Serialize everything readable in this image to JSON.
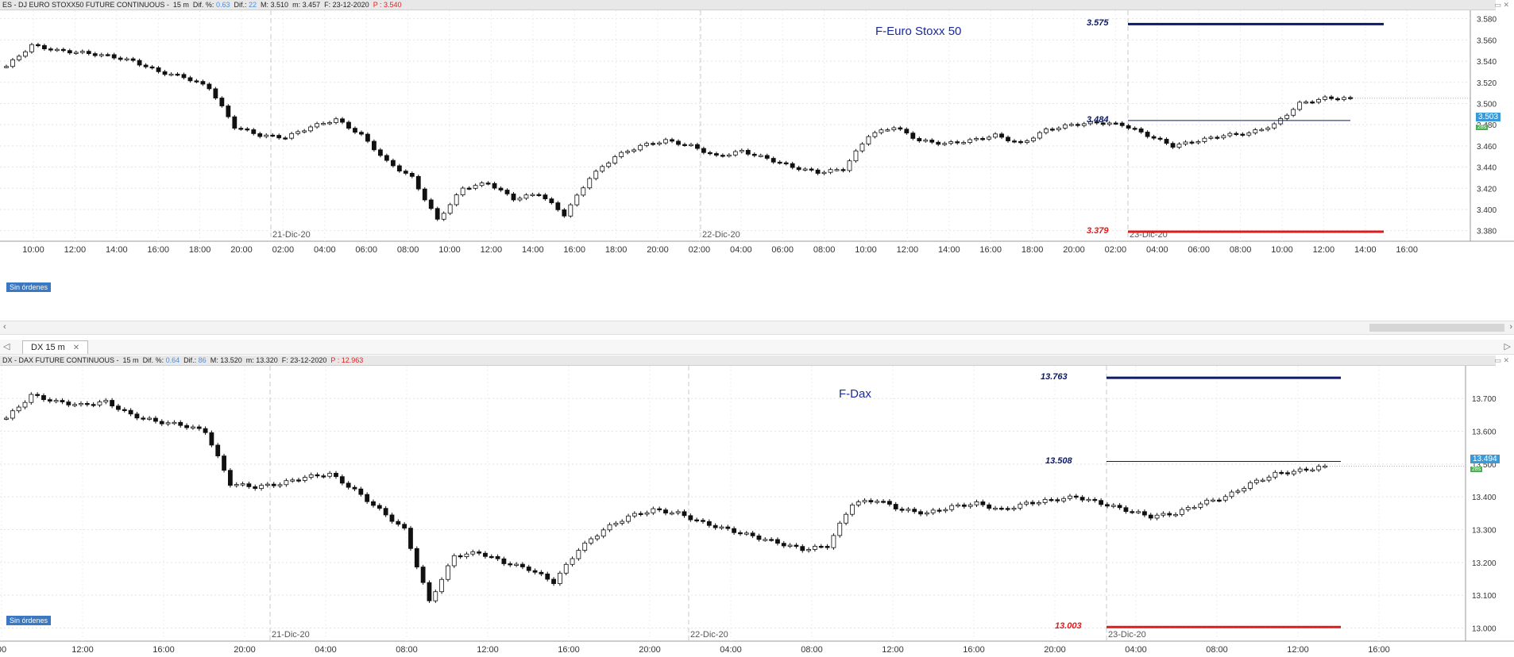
{
  "top_chart": {
    "header": {
      "symbol": "ES - DJ EURO STOXX50 FUTURE CONTINUOUS -",
      "tf": "15 m",
      "dif_pct_label": "Dif. %:",
      "dif_pct": "0.63",
      "dif_label": "Dif.:",
      "dif": "22",
      "max": "M: 3.510",
      "min": "m: 3.457",
      "date": "F: 23-12-2020",
      "price": "P : 3.540"
    },
    "title": "F-Euro Stoxx 50",
    "orders_label": "Sin órdenes",
    "last_price": "3.503",
    "timer": "28s",
    "levels": [
      {
        "label": "3.575",
        "value": 3575,
        "color": "#0b1a6b"
      },
      {
        "label": "3.484",
        "value": 3484,
        "color": "#0b1a6b"
      },
      {
        "label": "3.379",
        "value": 3379,
        "color": "#e11b1b"
      }
    ],
    "y_ticks": [
      "3.580",
      "3.560",
      "3.540",
      "3.520",
      "3.500",
      "3.480",
      "3.460",
      "3.440",
      "3.420",
      "3.400",
      "3.380"
    ],
    "x_ticks": [
      "10:00",
      "12:00",
      "14:00",
      "16:00",
      "18:00",
      "20:00",
      "02:00",
      "04:00",
      "06:00",
      "08:00",
      "10:00",
      "12:00",
      "14:00",
      "16:00",
      "18:00",
      "20:00",
      "02:00",
      "04:00",
      "06:00",
      "08:00",
      "10:00",
      "12:00",
      "14:00",
      "16:00",
      "18:00",
      "20:00",
      "02:00",
      "04:00",
      "06:00",
      "08:00",
      "10:00",
      "12:00",
      "14:00",
      "16:00"
    ],
    "day_labels": [
      "21-Dic-20",
      "22-Dic-20",
      "23-Dic-20"
    ]
  },
  "tab": {
    "label": "DX 15 m"
  },
  "bottom_chart": {
    "header": {
      "symbol": "DX - DAX FUTURE CONTINUOUS -",
      "tf": "15 m",
      "dif_pct_label": "Dif. %:",
      "dif_pct": "0.64",
      "dif_label": "Dif.:",
      "dif": "86",
      "max": "M: 13.520",
      "min": "m: 13.320",
      "date": "F: 23-12-2020",
      "price": "P : 12.963"
    },
    "title": "F-Dax",
    "orders_label": "Sin órdenes",
    "last_price": "13.494",
    "timer": "28s",
    "levels": [
      {
        "label": "13.763",
        "value": 13763,
        "color": "#0b1a6b"
      },
      {
        "label": "13.508",
        "value": 13508,
        "color": "#0b1a6b"
      },
      {
        "label": "13.003",
        "value": 13003,
        "color": "#e11b1b"
      }
    ],
    "y_ticks": [
      "13.700",
      "13.600",
      "13.500",
      "13.400",
      "13.300",
      "13.200",
      "13.100",
      "13.000"
    ],
    "x_ticks": [
      "00",
      "12:00",
      "16:00",
      "20:00",
      "04:00",
      "08:00",
      "12:00",
      "16:00",
      "20:00",
      "04:00",
      "08:00",
      "12:00",
      "16:00",
      "20:00",
      "04:00",
      "08:00",
      "12:00",
      "16:00"
    ],
    "day_labels": [
      "21-Dic-20",
      "22-Dic-20",
      "23-Dic-20"
    ]
  },
  "chart_data": [
    {
      "type": "candlestick",
      "title": "F-Euro Stoxx 50",
      "ylim": [
        3370,
        3585
      ],
      "approx_close_path": [
        3535,
        3555,
        3550,
        3548,
        3545,
        3540,
        3530,
        3525,
        3515,
        3478,
        3470,
        3468,
        3478,
        3485,
        3470,
        3445,
        3430,
        3390,
        3420,
        3425,
        3410,
        3415,
        3395,
        3430,
        3450,
        3460,
        3465,
        3460,
        3450,
        3455,
        3448,
        3440,
        3435,
        3438,
        3470,
        3478,
        3465,
        3462,
        3465,
        3470,
        3462,
        3475,
        3480,
        3482,
        3480,
        3470,
        3460,
        3465,
        3470,
        3472,
        3480,
        3500,
        3505,
        3505
      ]
    },
    {
      "type": "candlestick",
      "title": "F-Dax",
      "ylim": [
        12960,
        13790
      ],
      "approx_close_path": [
        13640,
        13710,
        13690,
        13680,
        13690,
        13650,
        13630,
        13620,
        13600,
        13440,
        13430,
        13440,
        13460,
        13470,
        13420,
        13360,
        13300,
        13080,
        13220,
        13230,
        13200,
        13180,
        13140,
        13240,
        13300,
        13340,
        13360,
        13350,
        13320,
        13300,
        13280,
        13260,
        13240,
        13250,
        13380,
        13390,
        13360,
        13350,
        13370,
        13380,
        13360,
        13380,
        13390,
        13400,
        13380,
        13360,
        13340,
        13350,
        13380,
        13400,
        13440,
        13470,
        13480,
        13494
      ]
    }
  ]
}
